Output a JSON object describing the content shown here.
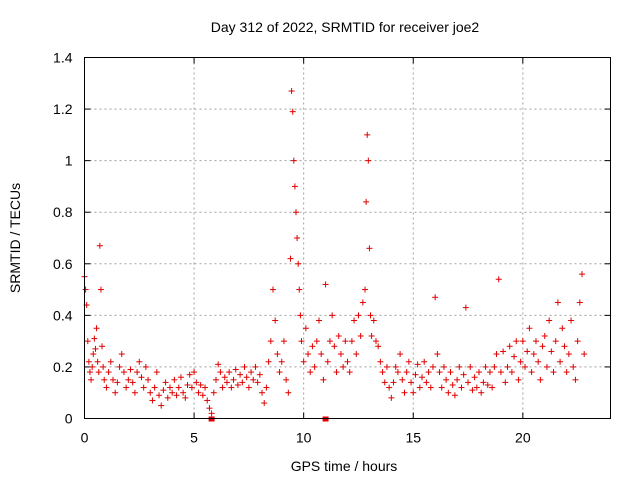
{
  "chart_data": {
    "type": "scatter",
    "title": "Day 312 of 2022, SRMTID for receiver joe2",
    "xlabel": "GPS time / hours",
    "ylabel": "SRMTID / TECUs",
    "xlim": [
      0,
      24
    ],
    "ylim": [
      0,
      1.4
    ],
    "xticks": [
      0,
      5,
      10,
      15,
      20
    ],
    "xtick_labels": [
      "0",
      "5",
      "10",
      "15",
      "20"
    ],
    "yticks": [
      0,
      0.2,
      0.4,
      0.6,
      0.8,
      1,
      1.2,
      1.4
    ],
    "ytick_labels": [
      "0",
      "0.2",
      "0.4",
      "0.6",
      "0.8",
      "1",
      "1.2",
      "1.4"
    ],
    "grid": true,
    "marker_color": "#e00000",
    "marker": "plus",
    "series": [
      {
        "name": "SRMTID",
        "points": [
          [
            0.0,
            0.55
          ],
          [
            0.05,
            0.5
          ],
          [
            0.1,
            0.44
          ],
          [
            0.15,
            0.3
          ],
          [
            0.2,
            0.22
          ],
          [
            0.25,
            0.18
          ],
          [
            0.3,
            0.15
          ],
          [
            0.35,
            0.2
          ],
          [
            0.4,
            0.25
          ],
          [
            0.45,
            0.31
          ],
          [
            0.5,
            0.27
          ],
          [
            0.55,
            0.35
          ],
          [
            0.6,
            0.22
          ],
          [
            0.65,
            0.18
          ],
          [
            0.7,
            0.67
          ],
          [
            0.75,
            0.5
          ],
          [
            0.8,
            0.28
          ],
          [
            0.85,
            0.2
          ],
          [
            0.9,
            0.15
          ],
          [
            1.0,
            0.12
          ],
          [
            1.1,
            0.18
          ],
          [
            1.2,
            0.22
          ],
          [
            1.3,
            0.15
          ],
          [
            1.4,
            0.1
          ],
          [
            1.5,
            0.14
          ],
          [
            1.6,
            0.2
          ],
          [
            1.7,
            0.25
          ],
          [
            1.8,
            0.18
          ],
          [
            1.9,
            0.12
          ],
          [
            2.0,
            0.15
          ],
          [
            2.1,
            0.19
          ],
          [
            2.2,
            0.14
          ],
          [
            2.3,
            0.1
          ],
          [
            2.4,
            0.18
          ],
          [
            2.5,
            0.22
          ],
          [
            2.6,
            0.16
          ],
          [
            2.7,
            0.12
          ],
          [
            2.8,
            0.2
          ],
          [
            2.9,
            0.15
          ],
          [
            3.0,
            0.1
          ],
          [
            3.1,
            0.07
          ],
          [
            3.2,
            0.12
          ],
          [
            3.3,
            0.18
          ],
          [
            3.4,
            0.09
          ],
          [
            3.5,
            0.05
          ],
          [
            3.6,
            0.11
          ],
          [
            3.7,
            0.14
          ],
          [
            3.8,
            0.08
          ],
          [
            3.9,
            0.12
          ],
          [
            4.0,
            0.1
          ],
          [
            4.1,
            0.15
          ],
          [
            4.2,
            0.09
          ],
          [
            4.3,
            0.12
          ],
          [
            4.4,
            0.16
          ],
          [
            4.5,
            0.1
          ],
          [
            4.6,
            0.08
          ],
          [
            4.7,
            0.13
          ],
          [
            4.8,
            0.17
          ],
          [
            4.9,
            0.12
          ],
          [
            5.0,
            0.18
          ],
          [
            5.1,
            0.14
          ],
          [
            5.2,
            0.1
          ],
          [
            5.3,
            0.13
          ],
          [
            5.4,
            0.09
          ],
          [
            5.5,
            0.12
          ],
          [
            5.6,
            0.07
          ],
          [
            5.7,
            0.04
          ],
          [
            5.8,
            0.02
          ],
          [
            5.9,
            0.1
          ],
          [
            6.0,
            0.15
          ],
          [
            6.1,
            0.21
          ],
          [
            6.2,
            0.18
          ],
          [
            6.3,
            0.12
          ],
          [
            6.4,
            0.16
          ],
          [
            6.5,
            0.14
          ],
          [
            6.6,
            0.18
          ],
          [
            6.7,
            0.12
          ],
          [
            6.8,
            0.15
          ],
          [
            6.9,
            0.19
          ],
          [
            7.0,
            0.13
          ],
          [
            7.1,
            0.17
          ],
          [
            7.2,
            0.14
          ],
          [
            7.3,
            0.2
          ],
          [
            7.4,
            0.16
          ],
          [
            7.5,
            0.12
          ],
          [
            7.6,
            0.18
          ],
          [
            7.7,
            0.15
          ],
          [
            7.8,
            0.2
          ],
          [
            7.9,
            0.14
          ],
          [
            8.0,
            0.17
          ],
          [
            8.1,
            0.1
          ],
          [
            8.2,
            0.06
          ],
          [
            8.3,
            0.12
          ],
          [
            8.4,
            0.22
          ],
          [
            8.5,
            0.3
          ],
          [
            8.6,
            0.5
          ],
          [
            8.7,
            0.38
          ],
          [
            8.8,
            0.25
          ],
          [
            8.9,
            0.18
          ],
          [
            9.0,
            0.22
          ],
          [
            9.1,
            0.3
          ],
          [
            9.2,
            0.15
          ],
          [
            9.3,
            0.1
          ],
          [
            9.4,
            0.62
          ],
          [
            9.45,
            1.27
          ],
          [
            9.5,
            1.19
          ],
          [
            9.55,
            1.0
          ],
          [
            9.6,
            0.9
          ],
          [
            9.65,
            0.8
          ],
          [
            9.7,
            0.7
          ],
          [
            9.75,
            0.6
          ],
          [
            9.8,
            0.5
          ],
          [
            9.85,
            0.4
          ],
          [
            9.9,
            0.3
          ],
          [
            10.0,
            0.22
          ],
          [
            10.1,
            0.35
          ],
          [
            10.2,
            0.25
          ],
          [
            10.3,
            0.18
          ],
          [
            10.4,
            0.28
          ],
          [
            10.5,
            0.2
          ],
          [
            10.6,
            0.3
          ],
          [
            10.7,
            0.38
          ],
          [
            10.8,
            0.25
          ],
          [
            10.9,
            0.15
          ],
          [
            11.0,
            0.52
          ],
          [
            11.1,
            0.22
          ],
          [
            11.2,
            0.3
          ],
          [
            11.3,
            0.4
          ],
          [
            11.4,
            0.28
          ],
          [
            11.5,
            0.18
          ],
          [
            11.6,
            0.32
          ],
          [
            11.7,
            0.25
          ],
          [
            11.8,
            0.2
          ],
          [
            11.9,
            0.3
          ],
          [
            12.0,
            0.22
          ],
          [
            12.1,
            0.18
          ],
          [
            12.2,
            0.3
          ],
          [
            12.3,
            0.38
          ],
          [
            12.4,
            0.25
          ],
          [
            12.5,
            0.4
          ],
          [
            12.6,
            0.32
          ],
          [
            12.7,
            0.45
          ],
          [
            12.8,
            0.5
          ],
          [
            12.85,
            0.84
          ],
          [
            12.9,
            1.1
          ],
          [
            12.95,
            1.0
          ],
          [
            13.0,
            0.66
          ],
          [
            13.05,
            0.4
          ],
          [
            13.1,
            0.32
          ],
          [
            13.2,
            0.38
          ],
          [
            13.3,
            0.3
          ],
          [
            13.4,
            0.28
          ],
          [
            13.5,
            0.22
          ],
          [
            13.6,
            0.18
          ],
          [
            13.7,
            0.14
          ],
          [
            13.8,
            0.2
          ],
          [
            13.9,
            0.12
          ],
          [
            14.0,
            0.08
          ],
          [
            14.1,
            0.14
          ],
          [
            14.2,
            0.2
          ],
          [
            14.3,
            0.18
          ],
          [
            14.4,
            0.25
          ],
          [
            14.5,
            0.15
          ],
          [
            14.6,
            0.1
          ],
          [
            14.7,
            0.18
          ],
          [
            14.8,
            0.22
          ],
          [
            14.9,
            0.14
          ],
          [
            15.0,
            0.1
          ],
          [
            15.1,
            0.17
          ],
          [
            15.2,
            0.21
          ],
          [
            15.3,
            0.12
          ],
          [
            15.4,
            0.16
          ],
          [
            15.5,
            0.22
          ],
          [
            15.6,
            0.14
          ],
          [
            15.7,
            0.18
          ],
          [
            15.8,
            0.12
          ],
          [
            15.9,
            0.2
          ],
          [
            16.0,
            0.47
          ],
          [
            16.1,
            0.25
          ],
          [
            16.2,
            0.18
          ],
          [
            16.3,
            0.12
          ],
          [
            16.4,
            0.2
          ],
          [
            16.5,
            0.15
          ],
          [
            16.6,
            0.1
          ],
          [
            16.7,
            0.18
          ],
          [
            16.8,
            0.13
          ],
          [
            16.9,
            0.09
          ],
          [
            17.0,
            0.15
          ],
          [
            17.1,
            0.2
          ],
          [
            17.2,
            0.12
          ],
          [
            17.3,
            0.17
          ],
          [
            17.4,
            0.43
          ],
          [
            17.5,
            0.14
          ],
          [
            17.6,
            0.2
          ],
          [
            17.7,
            0.11
          ],
          [
            17.8,
            0.16
          ],
          [
            17.9,
            0.12
          ],
          [
            18.0,
            0.18
          ],
          [
            18.1,
            0.1
          ],
          [
            18.2,
            0.14
          ],
          [
            18.3,
            0.2
          ],
          [
            18.4,
            0.13
          ],
          [
            18.5,
            0.18
          ],
          [
            18.6,
            0.12
          ],
          [
            18.7,
            0.2
          ],
          [
            18.8,
            0.25
          ],
          [
            18.9,
            0.54
          ],
          [
            19.0,
            0.18
          ],
          [
            19.1,
            0.26
          ],
          [
            19.2,
            0.14
          ],
          [
            19.3,
            0.2
          ],
          [
            19.4,
            0.28
          ],
          [
            19.5,
            0.18
          ],
          [
            19.6,
            0.24
          ],
          [
            19.7,
            0.3
          ],
          [
            19.8,
            0.15
          ],
          [
            19.9,
            0.22
          ],
          [
            20.0,
            0.3
          ],
          [
            20.1,
            0.2
          ],
          [
            20.2,
            0.26
          ],
          [
            20.3,
            0.35
          ],
          [
            20.4,
            0.18
          ],
          [
            20.5,
            0.25
          ],
          [
            20.6,
            0.3
          ],
          [
            20.7,
            0.22
          ],
          [
            20.8,
            0.15
          ],
          [
            20.9,
            0.28
          ],
          [
            21.0,
            0.32
          ],
          [
            21.1,
            0.2
          ],
          [
            21.2,
            0.38
          ],
          [
            21.3,
            0.26
          ],
          [
            21.4,
            0.18
          ],
          [
            21.5,
            0.3
          ],
          [
            21.6,
            0.45
          ],
          [
            21.7,
            0.22
          ],
          [
            21.8,
            0.35
          ],
          [
            21.9,
            0.28
          ],
          [
            22.0,
            0.18
          ],
          [
            22.1,
            0.25
          ],
          [
            22.2,
            0.38
          ],
          [
            22.3,
            0.2
          ],
          [
            22.4,
            0.15
          ],
          [
            22.5,
            0.3
          ],
          [
            22.6,
            0.45
          ],
          [
            22.7,
            0.56
          ],
          [
            22.8,
            0.25
          ]
        ],
        "near_zero_markers": [
          5.8,
          11.0
        ]
      }
    ]
  }
}
